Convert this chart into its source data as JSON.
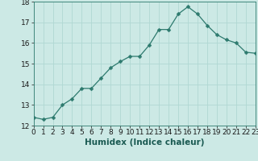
{
  "x": [
    0,
    1,
    2,
    3,
    4,
    5,
    6,
    7,
    8,
    9,
    10,
    11,
    12,
    13,
    14,
    15,
    16,
    17,
    18,
    19,
    20,
    21,
    22,
    23
  ],
  "y": [
    12.4,
    12.3,
    12.4,
    13.0,
    13.3,
    13.8,
    13.8,
    14.3,
    14.8,
    15.1,
    15.35,
    15.35,
    15.9,
    16.65,
    16.65,
    17.4,
    17.75,
    17.4,
    16.85,
    16.4,
    16.15,
    16.0,
    15.55,
    15.5
  ],
  "line_color": "#2d7a6e",
  "marker": "D",
  "marker_size": 2.5,
  "bg_color": "#cce9e5",
  "grid_color": "#b0d8d3",
  "xlabel": "Humidex (Indice chaleur)",
  "xlim": [
    0,
    23
  ],
  "ylim": [
    12,
    18
  ],
  "xtick_labels": [
    "0",
    "1",
    "2",
    "3",
    "4",
    "5",
    "6",
    "7",
    "8",
    "9",
    "10",
    "11",
    "12",
    "13",
    "14",
    "15",
    "16",
    "17",
    "18",
    "19",
    "20",
    "21",
    "22",
    "23"
  ],
  "ytick_values": [
    12,
    13,
    14,
    15,
    16,
    17,
    18
  ],
  "xlabel_fontsize": 7.5,
  "tick_fontsize": 6.5
}
